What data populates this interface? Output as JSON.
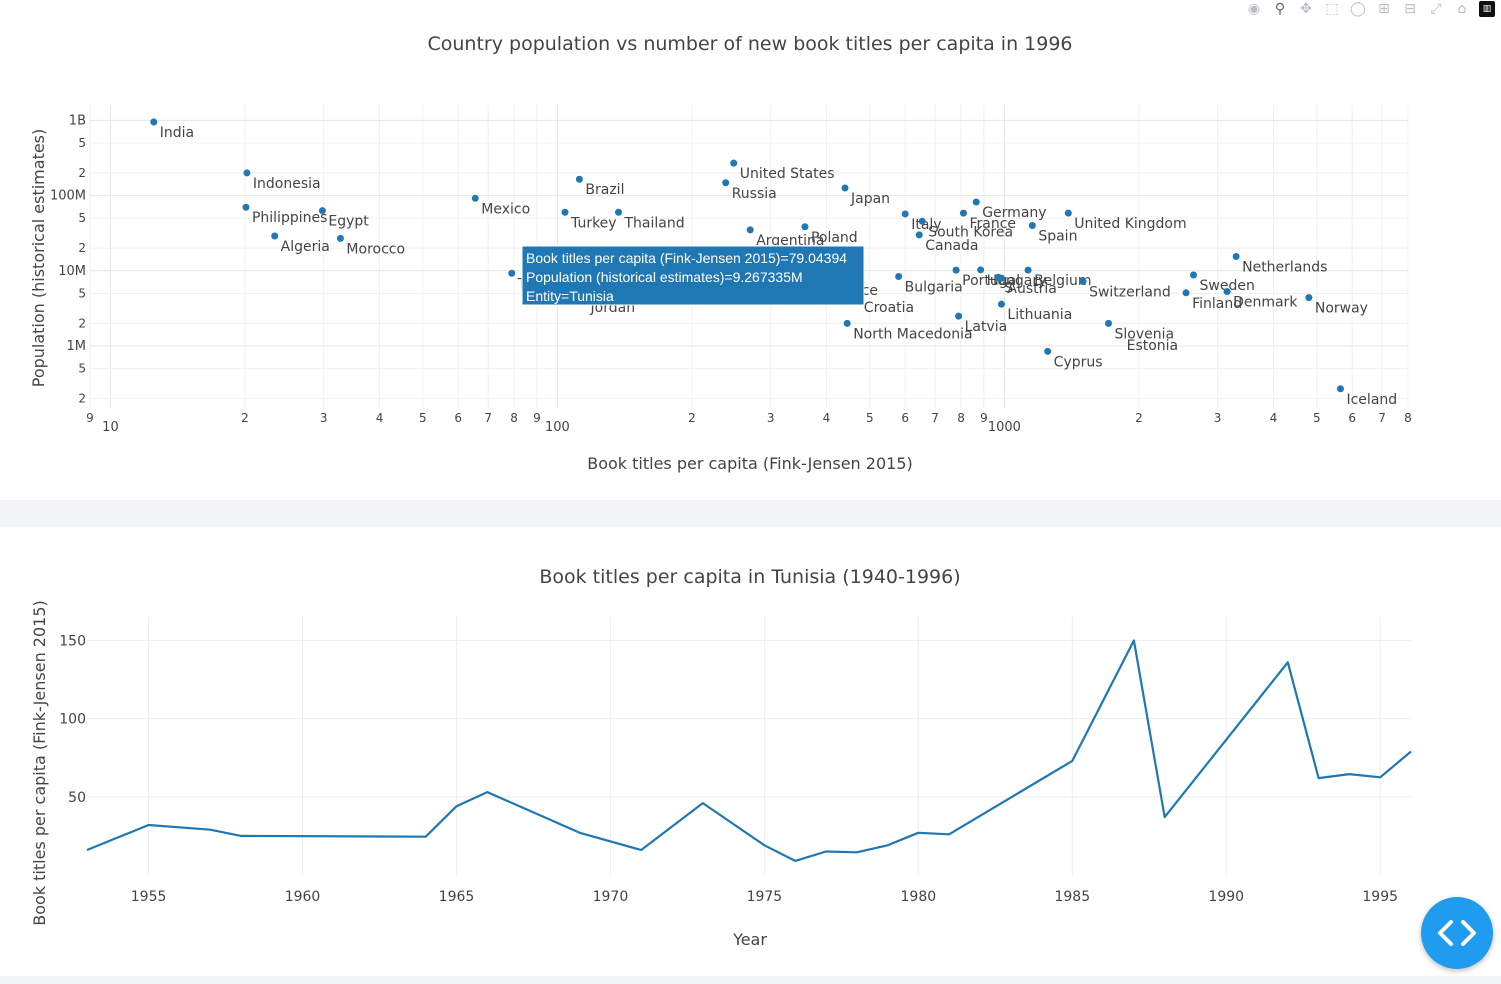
{
  "modebar": {
    "icons": [
      "camera-icon",
      "zoom-icon",
      "pan-icon",
      "box-select-icon",
      "lasso-icon",
      "zoom-in-icon",
      "zoom-out-icon",
      "autoscale-icon",
      "reset-icon",
      "plotly-logo-icon"
    ]
  },
  "code_button": {
    "label": "< >"
  },
  "colors": {
    "marker": "#1f77b4",
    "grid": "#eeeeee",
    "band": "#f2f4f6",
    "fab": "#1f9cf0"
  },
  "chart_data": [
    {
      "type": "scatter",
      "title": "Country population vs number of new book titles per capita in 1996",
      "xlabel": "Book titles per capita (Fink-Jensen 2015)",
      "ylabel": "Population (historical estimates)",
      "xscale": "log",
      "yscale": "log",
      "xlim": [
        9,
        8000
      ],
      "ylim": [
        150000,
        1600000000
      ],
      "xticks": [
        {
          "v": 9,
          "t": "9"
        },
        {
          "v": 10,
          "t": "10",
          "major": true
        },
        {
          "v": 20,
          "t": "2"
        },
        {
          "v": 30,
          "t": "3"
        },
        {
          "v": 40,
          "t": "4"
        },
        {
          "v": 50,
          "t": "5"
        },
        {
          "v": 60,
          "t": "6"
        },
        {
          "v": 70,
          "t": "7"
        },
        {
          "v": 80,
          "t": "8"
        },
        {
          "v": 90,
          "t": "9"
        },
        {
          "v": 100,
          "t": "100",
          "major": true
        },
        {
          "v": 200,
          "t": "2"
        },
        {
          "v": 300,
          "t": "3"
        },
        {
          "v": 400,
          "t": "4"
        },
        {
          "v": 500,
          "t": "5"
        },
        {
          "v": 600,
          "t": "6"
        },
        {
          "v": 700,
          "t": "7"
        },
        {
          "v": 800,
          "t": "8"
        },
        {
          "v": 900,
          "t": "9"
        },
        {
          "v": 1000,
          "t": "1000",
          "major": true
        },
        {
          "v": 2000,
          "t": "2"
        },
        {
          "v": 3000,
          "t": "3"
        },
        {
          "v": 4000,
          "t": "4"
        },
        {
          "v": 5000,
          "t": "5"
        },
        {
          "v": 6000,
          "t": "6"
        },
        {
          "v": 7000,
          "t": "7"
        },
        {
          "v": 8000,
          "t": "8"
        }
      ],
      "yticks": [
        {
          "v": 1000000000,
          "t": "1B",
          "major": true
        },
        {
          "v": 500000000,
          "t": "5"
        },
        {
          "v": 200000000,
          "t": "2"
        },
        {
          "v": 100000000,
          "t": "100M",
          "major": true
        },
        {
          "v": 50000000,
          "t": "5"
        },
        {
          "v": 20000000,
          "t": "2"
        },
        {
          "v": 10000000,
          "t": "10M",
          "major": true
        },
        {
          "v": 5000000,
          "t": "5"
        },
        {
          "v": 2000000,
          "t": "2"
        },
        {
          "v": 1000000,
          "t": "1M",
          "major": true
        },
        {
          "v": 500000,
          "t": "5"
        },
        {
          "v": 200000,
          "t": "2"
        }
      ],
      "points": [
        {
          "name": "India",
          "x": 12.5,
          "y": 950000000,
          "label": "India"
        },
        {
          "name": "Indonesia",
          "x": 20.2,
          "y": 200000000,
          "label": "Indonesia"
        },
        {
          "name": "Philippines",
          "x": 20.1,
          "y": 70000000,
          "label": "Philippines"
        },
        {
          "name": "Algeria",
          "x": 23.3,
          "y": 29000000,
          "label": "Algeria"
        },
        {
          "name": "Egypt",
          "x": 29.8,
          "y": 63000000,
          "label": "Egypt"
        },
        {
          "name": "Morocco",
          "x": 32.7,
          "y": 27000000,
          "label": "Morocco"
        },
        {
          "name": "Mexico",
          "x": 65.5,
          "y": 92000000,
          "label": "Mexico"
        },
        {
          "name": "Tunisia",
          "x": 79.04394,
          "y": 9267335,
          "label": "T"
        },
        {
          "name": "Turkey",
          "x": 104,
          "y": 60000000,
          "label": "Turkey"
        },
        {
          "name": "Jordan",
          "x": 115,
          "y": 4500000,
          "label": "Jordan",
          "dot": false
        },
        {
          "name": "Brazil",
          "x": 112,
          "y": 165000000,
          "label": "Brazil"
        },
        {
          "name": "Thailand",
          "x": 137,
          "y": 60000000,
          "label": "Thailand"
        },
        {
          "name": "United States",
          "x": 248,
          "y": 270000000,
          "label": "United States"
        },
        {
          "name": "Russia",
          "x": 238,
          "y": 148000000,
          "label": "Russia"
        },
        {
          "name": "Argentina",
          "x": 270,
          "y": 35000000,
          "label": "Argentina"
        },
        {
          "name": "Poland",
          "x": 358,
          "y": 38500000,
          "label": "Poland"
        },
        {
          "name": "Japan",
          "x": 440,
          "y": 126000000,
          "label": "Japan"
        },
        {
          "name": "France",
          "x": 465,
          "y": 7500000,
          "label": "ce",
          "dot": false
        },
        {
          "name": "Croatia",
          "x": 470,
          "y": 4500000,
          "label": "Croatia",
          "dot": false
        },
        {
          "name": "North Macedonia",
          "x": 445,
          "y": 2000000,
          "label": "North Macedonia"
        },
        {
          "name": "Bulgaria",
          "x": 580,
          "y": 8400000,
          "label": "Bulgaria"
        },
        {
          "name": "Italy",
          "x": 600,
          "y": 57000000,
          "label": "Italy"
        },
        {
          "name": "South Korea",
          "x": 655,
          "y": 45500000,
          "label": "South Korea"
        },
        {
          "name": "Canada",
          "x": 645,
          "y": 30000000,
          "label": "Canada"
        },
        {
          "name": "France ",
          "x": 810,
          "y": 58500000,
          "label": "France"
        },
        {
          "name": "Germany",
          "x": 865,
          "y": 82000000,
          "label": "Germany"
        },
        {
          "name": "Portugal",
          "x": 780,
          "y": 10200000,
          "label": "Portugal"
        },
        {
          "name": "Latvia",
          "x": 790,
          "y": 2500000,
          "label": "Latvia"
        },
        {
          "name": "Hungary",
          "x": 885,
          "y": 10300000,
          "label": "Hungary"
        },
        {
          "name": "Greece",
          "x": 970,
          "y": 8200000,
          "label": "S"
        },
        {
          "name": "Austria",
          "x": 985,
          "y": 8000000,
          "label": "Austria"
        },
        {
          "name": "Lithuania",
          "x": 985,
          "y": 3600000,
          "label": "Lithuania"
        },
        {
          "name": "Belgium",
          "x": 1130,
          "y": 10200000,
          "label": "Belgium"
        },
        {
          "name": "Spain",
          "x": 1155,
          "y": 40000000,
          "label": "Spain"
        },
        {
          "name": "United Kingdom",
          "x": 1390,
          "y": 58500000,
          "label": "United Kingdom"
        },
        {
          "name": "Switzerland",
          "x": 1500,
          "y": 7200000,
          "label": "Switzerland"
        },
        {
          "name": "Cyprus",
          "x": 1250,
          "y": 850000,
          "label": "Cyprus"
        },
        {
          "name": "Slovenia",
          "x": 1710,
          "y": 2000000,
          "label": "Slovenia"
        },
        {
          "name": "Estonia",
          "x": 1820,
          "y": 1400000,
          "label": "Estonia",
          "dot": false
        },
        {
          "name": "Netherlands",
          "x": 3300,
          "y": 15500000,
          "label": "Netherlands"
        },
        {
          "name": "Sweden",
          "x": 2650,
          "y": 8800000,
          "label": "Sweden"
        },
        {
          "name": "Finland",
          "x": 2550,
          "y": 5100000,
          "label": "Finland"
        },
        {
          "name": "Denmark",
          "x": 3150,
          "y": 5300000,
          "label": "Denmark"
        },
        {
          "name": "Norway",
          "x": 4800,
          "y": 4400000,
          "label": "Norway"
        },
        {
          "name": "Iceland",
          "x": 5650,
          "y": 270000,
          "label": "Iceland"
        }
      ],
      "hover": {
        "line1": "Book titles per capita (Fink-Jensen 2015)=79.04394",
        "line2": "Population (historical estimates)=9.267335M",
        "line3": "Entity=Tunisia"
      }
    },
    {
      "type": "line",
      "title": "Book titles per capita in Tunisia (1940-1996)",
      "xlabel": "Year",
      "ylabel": "Book titles per capita (Fink-Jensen 2015)",
      "xlim": [
        1953,
        1996
      ],
      "ylim": [
        0,
        165
      ],
      "xticks": [
        1955,
        1960,
        1965,
        1970,
        1975,
        1980,
        1985,
        1990,
        1995
      ],
      "yticks": [
        50,
        100,
        150
      ],
      "x": [
        1953,
        1955,
        1957,
        1958,
        1964,
        1965,
        1966,
        1969,
        1971,
        1973,
        1975,
        1976,
        1977,
        1978,
        1979,
        1980,
        1981,
        1985,
        1987,
        1988,
        1992,
        1993,
        1994,
        1995,
        1996
      ],
      "y": [
        16,
        32,
        29,
        25,
        24.5,
        44,
        53,
        27,
        16,
        46,
        19,
        9,
        15,
        14.5,
        19,
        27,
        26,
        73,
        150,
        37,
        136,
        62,
        64.5,
        62.5,
        79
      ]
    }
  ]
}
